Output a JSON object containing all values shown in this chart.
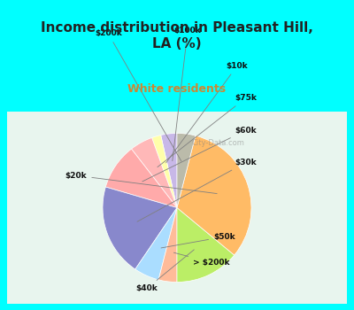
{
  "title": "Income distribution in Pleasant Hill,\nLA (%)",
  "subtitle": "White residents",
  "background_outer": "#00FFFF",
  "background_inner": "#e8f5ee",
  "labels": [
    "$100k",
    "$10k",
    "$75k",
    "$60k",
    "$30k",
    "$50k",
    "> $200k",
    "$40k",
    "$20k",
    "$200k"
  ],
  "values": [
    3.5,
    2.0,
    5.0,
    10.0,
    20.0,
    5.5,
    4.0,
    14.0,
    32.0,
    4.0
  ],
  "colors": [
    "#c8b8e8",
    "#ffffaa",
    "#ffb8b8",
    "#ffaaaa",
    "#8888cc",
    "#aaddff",
    "#ffbb99",
    "#bbee66",
    "#ffbb66",
    "#bbbbaa"
  ],
  "startangle": 90,
  "watermark": "City-Data.com"
}
